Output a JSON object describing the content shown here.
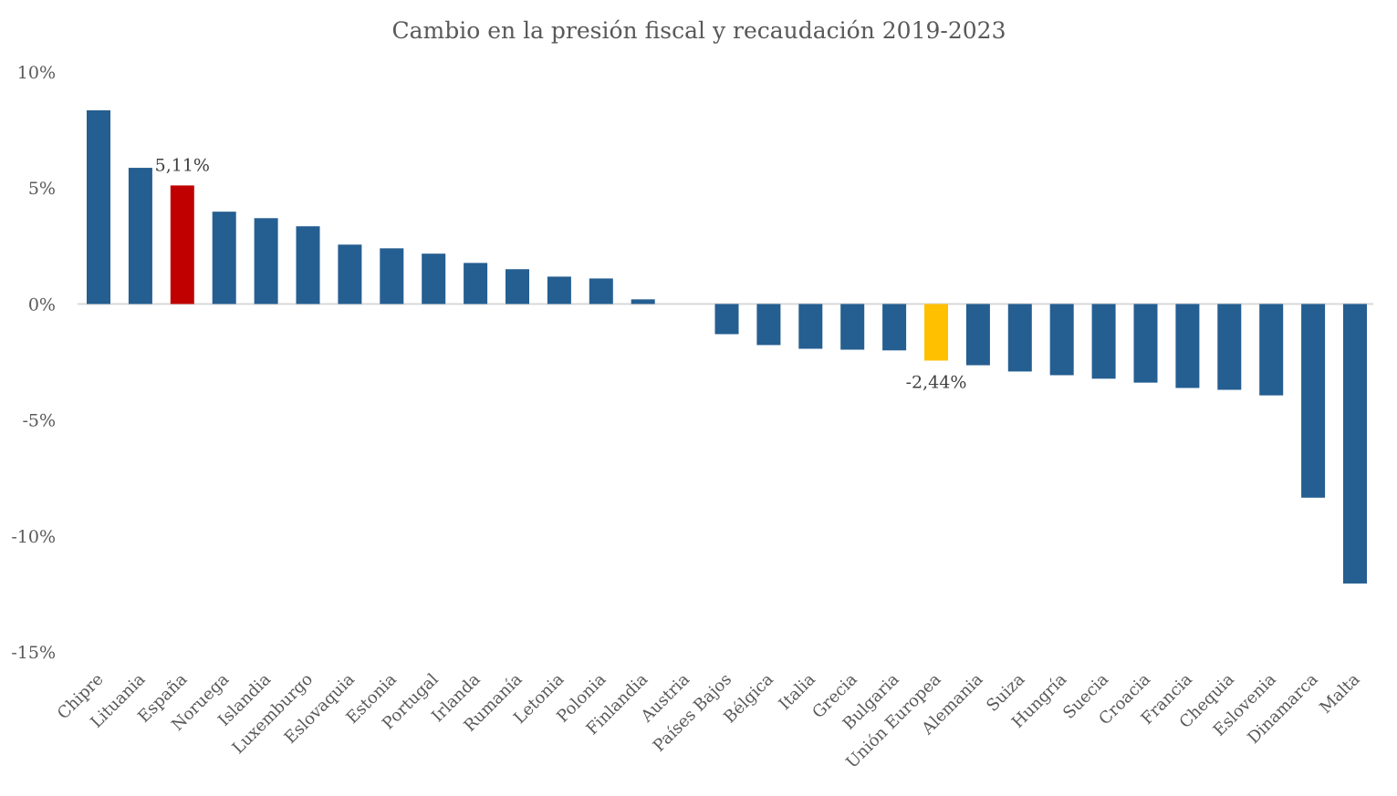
{
  "chart_data": {
    "type": "bar",
    "title": "Cambio en la presión fiscal y recaudación  2019-2023",
    "xlabel": "",
    "ylabel": "",
    "ylim": [
      -15,
      10
    ],
    "yticks": [
      10,
      5,
      0,
      -5,
      -10,
      -15
    ],
    "ytick_labels": [
      "10%",
      "5%",
      "0%",
      "-5%",
      "-10%",
      "-15%"
    ],
    "grid": false,
    "legend": "none",
    "categories": [
      "Chipre",
      "Lituania",
      "España",
      "Noruega",
      "Islandia",
      "Luxemburgo",
      "Eslovaquia",
      "Estonia",
      "Portugal",
      "Irlanda",
      "Rumanía",
      "Letonia",
      "Polonia",
      "Finlandia",
      "Austria",
      "Países Bajos",
      "Bélgica",
      "Italia",
      "Grecia",
      "Bulgaria",
      "Unión Europea",
      "Alemania",
      "Suiza",
      "Hungría",
      "Suecia",
      "Croacia",
      "Francia",
      "Chequia",
      "Eslovenia",
      "Dinamarca",
      "Malta"
    ],
    "values": [
      8.35,
      5.87,
      5.11,
      3.98,
      3.7,
      3.35,
      2.56,
      2.4,
      2.17,
      1.77,
      1.5,
      1.18,
      1.1,
      0.2,
      0.0,
      -1.3,
      -1.77,
      -1.93,
      -1.97,
      -2.0,
      -2.44,
      -2.64,
      -2.91,
      -3.07,
      -3.22,
      -3.39,
      -3.62,
      -3.7,
      -3.94,
      -8.35,
      -12.05
    ],
    "colors": {
      "default": "#255E91",
      "highlight_spain": "#C00000",
      "highlight_eu": "#FFC000"
    },
    "highlights": {
      "España": "highlight_spain",
      "Unión Europea": "highlight_eu"
    },
    "data_labels": [
      {
        "category": "España",
        "text": "5,11%"
      },
      {
        "category": "Unión Europea",
        "text": "-2,44%"
      }
    ]
  }
}
